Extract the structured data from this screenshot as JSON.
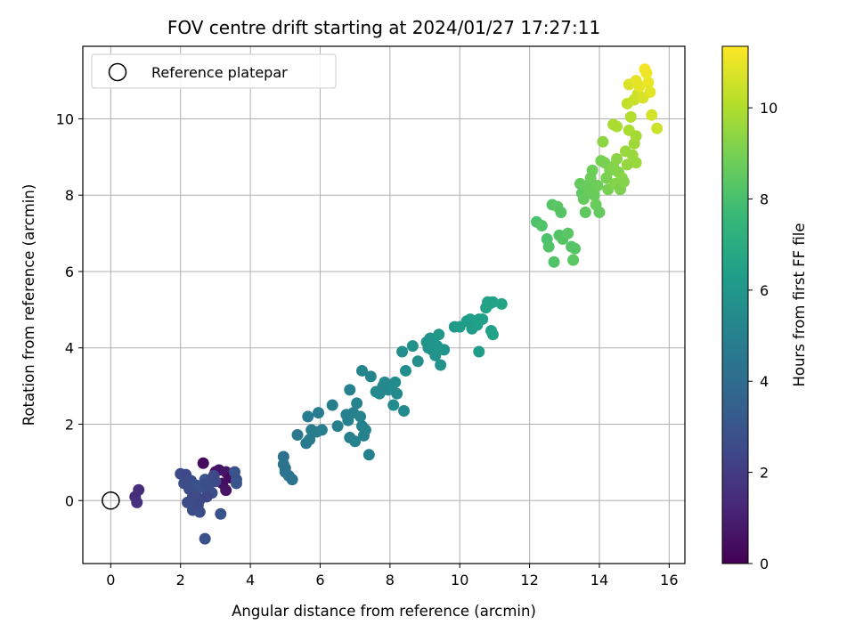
{
  "chart_data": {
    "type": "scatter",
    "title": "FOV centre drift starting at 2024/01/27 17:27:11",
    "xlabel": "Angular distance from reference (arcmin)",
    "ylabel": "Rotation from reference (arcmin)",
    "xlim": [
      -0.8,
      16.45
    ],
    "ylim": [
      -1.65,
      11.9
    ],
    "x_ticks": [
      0,
      2,
      4,
      6,
      8,
      10,
      12,
      14,
      16
    ],
    "y_ticks": [
      0,
      2,
      4,
      6,
      8,
      10
    ],
    "grid": true,
    "legend": {
      "placement": "top-left",
      "entries": [
        "Reference platepar"
      ]
    },
    "reference_point": {
      "x": 0,
      "y": 0,
      "label": "Reference platepar"
    },
    "colorbar": {
      "label": "Hours from first FF file",
      "colormap": "viridis",
      "range": [
        0,
        11.35
      ],
      "ticks": [
        0,
        2,
        4,
        6,
        8,
        10
      ]
    },
    "points": [
      [
        0.7,
        0.1,
        1.4
      ],
      [
        0.8,
        0.28,
        1.5
      ],
      [
        0.75,
        -0.05,
        1.6
      ],
      [
        2.0,
        0.7,
        2.6
      ],
      [
        2.15,
        0.68,
        2.5
      ],
      [
        2.1,
        0.45,
        2.7
      ],
      [
        2.3,
        0.52,
        2.6
      ],
      [
        2.45,
        0.4,
        2.8
      ],
      [
        2.25,
        0.3,
        2.7
      ],
      [
        2.2,
        -0.05,
        2.6
      ],
      [
        2.35,
        -0.25,
        2.7
      ],
      [
        2.55,
        -0.3,
        2.7
      ],
      [
        2.5,
        -0.12,
        2.6
      ],
      [
        2.45,
        0.12,
        2.5
      ],
      [
        2.6,
        0.35,
        2.9
      ],
      [
        2.7,
        0.55,
        3.0
      ],
      [
        2.8,
        0.3,
        2.8
      ],
      [
        2.9,
        0.2,
        2.7
      ],
      [
        2.65,
        0.98,
        0.3
      ],
      [
        3.0,
        0.75,
        0.5
      ],
      [
        3.1,
        0.8,
        0.6
      ],
      [
        3.3,
        0.75,
        0.7
      ],
      [
        3.4,
        0.6,
        0.4
      ],
      [
        3.2,
        0.45,
        0.5
      ],
      [
        3.3,
        0.27,
        0.6
      ],
      [
        3.55,
        0.75,
        2.9
      ],
      [
        3.6,
        0.55,
        2.8
      ],
      [
        3.6,
        0.45,
        3.0
      ],
      [
        3.0,
        0.5,
        2.6
      ],
      [
        2.95,
        0.65,
        2.5
      ],
      [
        2.75,
        0.45,
        2.7
      ],
      [
        3.15,
        -0.35,
        2.9
      ],
      [
        2.7,
        -1.0,
        2.8
      ],
      [
        2.35,
        0.1,
        2.6
      ],
      [
        2.55,
        0.02,
        2.5
      ],
      [
        2.75,
        0.1,
        2.4
      ],
      [
        4.95,
        1.15,
        4.2
      ],
      [
        4.95,
        0.95,
        4.3
      ],
      [
        5.0,
        0.75,
        4.2
      ],
      [
        5.1,
        0.65,
        4.4
      ],
      [
        5.2,
        0.55,
        4.3
      ],
      [
        5.0,
        0.85,
        4.3
      ],
      [
        5.35,
        1.72,
        4.6
      ],
      [
        5.6,
        1.5,
        4.6
      ],
      [
        5.7,
        1.6,
        4.7
      ],
      [
        5.75,
        1.85,
        4.8
      ],
      [
        5.9,
        1.8,
        4.7
      ],
      [
        5.65,
        2.2,
        4.7
      ],
      [
        5.95,
        2.3,
        4.8
      ],
      [
        6.05,
        1.85,
        4.9
      ],
      [
        6.35,
        2.5,
        4.9
      ],
      [
        6.5,
        1.95,
        4.9
      ],
      [
        6.75,
        2.25,
        5.0
      ],
      [
        6.8,
        2.1,
        5.0
      ],
      [
        6.85,
        1.65,
        4.9
      ],
      [
        6.95,
        2.3,
        5.0
      ],
      [
        7.0,
        1.55,
        5.0
      ],
      [
        7.05,
        2.55,
        5.1
      ],
      [
        7.15,
        2.2,
        5.1
      ],
      [
        7.2,
        1.95,
        5.0
      ],
      [
        7.25,
        1.7,
        5.0
      ],
      [
        7.3,
        1.85,
        5.1
      ],
      [
        6.85,
        2.9,
        5.0
      ],
      [
        7.2,
        3.4,
        5.2
      ],
      [
        7.45,
        3.25,
        5.2
      ],
      [
        7.4,
        1.2,
        5.0
      ],
      [
        7.6,
        2.85,
        5.3
      ],
      [
        7.7,
        2.8,
        5.4
      ],
      [
        7.8,
        3.0,
        5.3
      ],
      [
        7.85,
        3.1,
        5.4
      ],
      [
        7.95,
        2.9,
        5.3
      ],
      [
        8.05,
        2.95,
        5.4
      ],
      [
        8.15,
        3.1,
        5.5
      ],
      [
        8.2,
        2.8,
        5.4
      ],
      [
        8.1,
        2.5,
        5.5
      ],
      [
        8.4,
        2.35,
        5.4
      ],
      [
        8.45,
        3.4,
        5.5
      ],
      [
        8.35,
        3.9,
        5.6
      ],
      [
        8.65,
        4.05,
        5.7
      ],
      [
        8.8,
        3.65,
        5.6
      ],
      [
        9.05,
        4.15,
        5.8
      ],
      [
        9.1,
        4.0,
        5.8
      ],
      [
        9.15,
        4.25,
        5.9
      ],
      [
        9.2,
        3.95,
        5.8
      ],
      [
        9.25,
        4.15,
        5.9
      ],
      [
        9.3,
        3.8,
        5.8
      ],
      [
        9.35,
        4.05,
        5.9
      ],
      [
        9.4,
        4.35,
        6.0
      ],
      [
        9.45,
        3.55,
        5.8
      ],
      [
        9.55,
        3.95,
        5.9
      ],
      [
        9.85,
        4.55,
        6.1
      ],
      [
        10.0,
        4.55,
        6.2
      ],
      [
        10.2,
        4.7,
        6.2
      ],
      [
        10.3,
        4.75,
        6.3
      ],
      [
        10.35,
        4.5,
        6.2
      ],
      [
        10.5,
        4.6,
        6.3
      ],
      [
        10.55,
        4.75,
        6.4
      ],
      [
        10.65,
        4.75,
        6.4
      ],
      [
        10.75,
        5.05,
        6.5
      ],
      [
        10.8,
        5.2,
        6.5
      ],
      [
        10.85,
        5.15,
        6.6
      ],
      [
        10.95,
        5.2,
        6.5
      ],
      [
        11.2,
        5.15,
        6.6
      ],
      [
        10.9,
        4.45,
        6.4
      ],
      [
        10.95,
        4.35,
        6.5
      ],
      [
        10.55,
        3.9,
        6.2
      ],
      [
        12.2,
        7.3,
        8.1
      ],
      [
        12.35,
        7.2,
        8.2
      ],
      [
        12.5,
        6.85,
        8.1
      ],
      [
        12.55,
        6.65,
        8.2
      ],
      [
        12.65,
        7.75,
        8.3
      ],
      [
        12.8,
        7.7,
        8.4
      ],
      [
        12.9,
        7.55,
        8.3
      ],
      [
        12.85,
        6.95,
        8.2
      ],
      [
        12.95,
        6.85,
        8.3
      ],
      [
        13.1,
        7.0,
        8.4
      ],
      [
        12.7,
        6.25,
        8.2
      ],
      [
        13.2,
        6.65,
        8.3
      ],
      [
        13.25,
        6.3,
        8.4
      ],
      [
        13.3,
        6.6,
        8.3
      ],
      [
        13.45,
        8.3,
        8.6
      ],
      [
        13.5,
        8.05,
        8.5
      ],
      [
        13.55,
        7.9,
        8.6
      ],
      [
        13.6,
        7.55,
        8.5
      ],
      [
        13.65,
        8.25,
        8.7
      ],
      [
        13.7,
        8.15,
        8.7
      ],
      [
        13.75,
        8.45,
        8.8
      ],
      [
        13.8,
        8.65,
        8.8
      ],
      [
        13.85,
        8.0,
        8.7
      ],
      [
        13.9,
        7.75,
        8.7
      ],
      [
        14.0,
        7.55,
        8.6
      ],
      [
        13.95,
        8.25,
        8.8
      ],
      [
        14.05,
        8.9,
        9.0
      ],
      [
        14.1,
        9.4,
        9.4
      ],
      [
        14.15,
        8.85,
        9.0
      ],
      [
        14.2,
        8.45,
        9.0
      ],
      [
        14.25,
        8.15,
        9.0
      ],
      [
        14.3,
        8.65,
        9.1
      ],
      [
        14.4,
        8.75,
        9.2
      ],
      [
        14.45,
        8.3,
        9.2
      ],
      [
        14.5,
        8.95,
        9.3
      ],
      [
        14.55,
        8.6,
        9.2
      ],
      [
        14.6,
        8.15,
        9.1
      ],
      [
        14.65,
        8.45,
        9.3
      ],
      [
        14.7,
        8.35,
        9.2
      ],
      [
        14.75,
        9.15,
        9.6
      ],
      [
        14.8,
        8.8,
        9.5
      ],
      [
        14.85,
        9.7,
        9.9
      ],
      [
        14.9,
        10.05,
        10.0
      ],
      [
        14.95,
        9.05,
        9.6
      ],
      [
        15.0,
        9.35,
        9.7
      ],
      [
        15.05,
        9.55,
        9.8
      ],
      [
        15.05,
        8.85,
        9.6
      ],
      [
        14.4,
        9.85,
        9.9
      ],
      [
        14.5,
        9.8,
        9.9
      ],
      [
        14.8,
        10.4,
        10.3
      ],
      [
        15.0,
        10.5,
        10.4
      ],
      [
        15.1,
        10.65,
        10.5
      ],
      [
        14.85,
        10.9,
        10.7
      ],
      [
        15.05,
        11.0,
        10.9
      ],
      [
        15.15,
        10.85,
        10.9
      ],
      [
        15.25,
        10.55,
        10.7
      ],
      [
        15.3,
        11.3,
        11.2
      ],
      [
        15.35,
        11.2,
        11.1
      ],
      [
        15.4,
        10.95,
        11.0
      ],
      [
        15.45,
        10.7,
        10.9
      ],
      [
        15.5,
        10.1,
        10.6
      ],
      [
        15.65,
        9.75,
        10.5
      ]
    ]
  }
}
